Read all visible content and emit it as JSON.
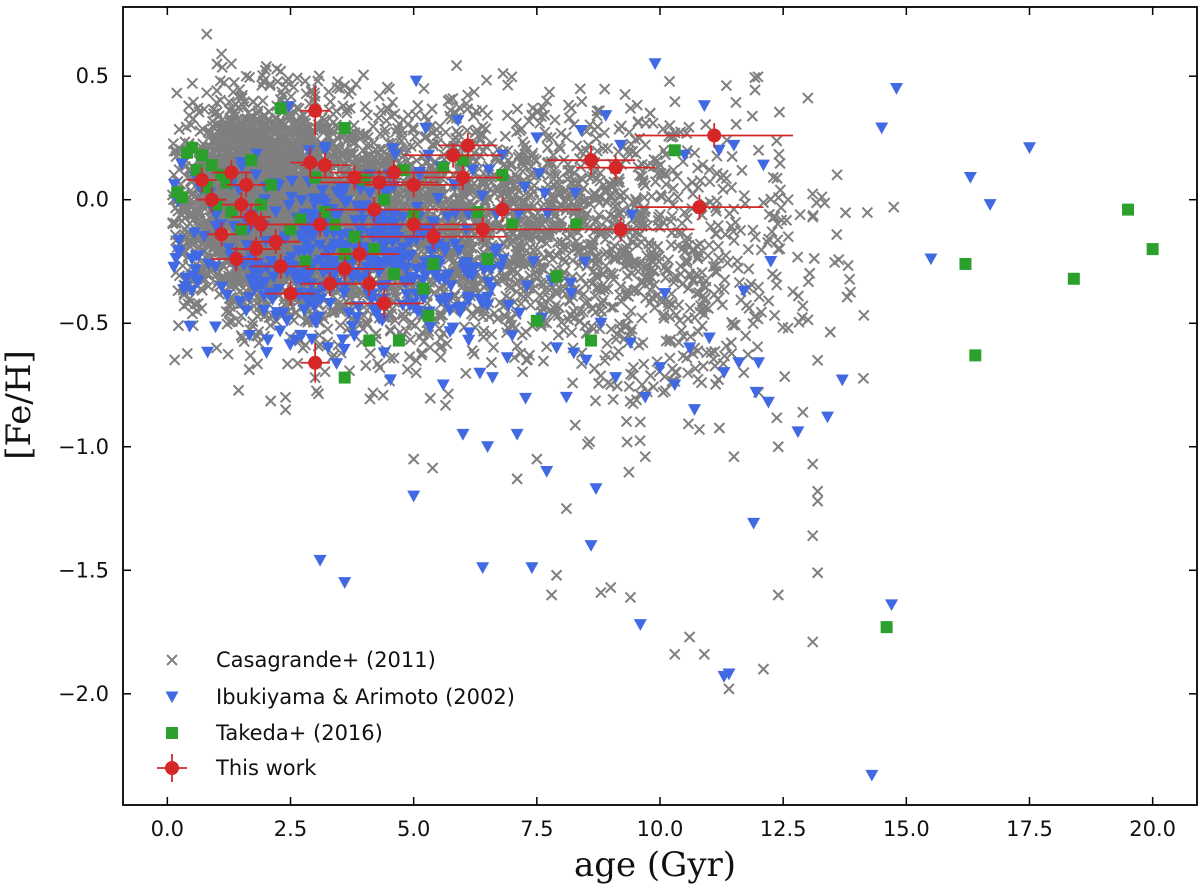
{
  "chart_data": {
    "type": "scatter",
    "title": "",
    "xlabel": "age (Gyr)",
    "ylabel": "[Fe/H]",
    "xlim": [
      -0.9,
      20.9
    ],
    "ylim": [
      -2.45,
      0.78
    ],
    "xticks": [
      0.0,
      2.5,
      5.0,
      7.5,
      10.0,
      12.5,
      15.0,
      17.5,
      20.0
    ],
    "xtick_labels": [
      "0.0",
      "2.5",
      "5.0",
      "7.5",
      "10.0",
      "12.5",
      "15.0",
      "17.5",
      "20.0"
    ],
    "yticks": [
      0.5,
      0.0,
      -0.5,
      -1.0,
      -1.5,
      -2.0
    ],
    "ytick_labels": [
      "0.5",
      "0.0",
      "−0.5",
      "−1.0",
      "−1.5",
      "−2.0"
    ],
    "grid": false,
    "legend_position": "bottom-left",
    "series": [
      {
        "name": "Casagrande+ (2011)",
        "marker": "x",
        "color": "#555555",
        "alpha": 0.75,
        "note": "approx. 6000 stars; dense cloud generated from listed cloud components plus explicit outliers",
        "seed": 12345,
        "cloud": [
          {
            "n": 2000,
            "x_mean": 1.8,
            "x_sd": 0.7,
            "y_mean": 0.0,
            "y_sd": 0.2
          },
          {
            "n": 1700,
            "x_mean": 3.5,
            "x_sd": 1.3,
            "y_mean": -0.08,
            "y_sd": 0.22
          },
          {
            "n": 1300,
            "x_mean": 6.5,
            "x_sd": 2.0,
            "y_mean": -0.1,
            "y_sd": 0.22
          },
          {
            "n": 500,
            "x_mean": 10.0,
            "x_sd": 1.6,
            "y_mean": -0.25,
            "y_sd": 0.3
          }
        ],
        "points": [
          [
            0.8,
            0.67
          ],
          [
            1.1,
            0.59
          ],
          [
            1.3,
            0.55
          ],
          [
            1.6,
            0.5
          ],
          [
            2.3,
            0.52
          ],
          [
            2.8,
            0.48
          ],
          [
            3.5,
            0.45
          ],
          [
            4.3,
            0.42
          ],
          [
            5.7,
            0.4
          ],
          [
            7.7,
            0.4
          ],
          [
            8.2,
            0.37
          ],
          [
            9.4,
            0.37
          ],
          [
            9.8,
            0.35
          ],
          [
            10.2,
            0.3
          ],
          [
            12.0,
            0.2
          ],
          [
            12.3,
            0.09
          ],
          [
            12.6,
            0.0
          ],
          [
            13.1,
            -0.07
          ],
          [
            12.4,
            -0.2
          ],
          [
            11.8,
            -0.28
          ],
          [
            12.9,
            -0.43
          ],
          [
            12.6,
            -0.52
          ],
          [
            13.2,
            -0.65
          ],
          [
            11.7,
            -0.7
          ],
          [
            12.0,
            -0.78
          ],
          [
            12.9,
            -0.86
          ],
          [
            12.4,
            -1.0
          ],
          [
            9.6,
            -0.9
          ],
          [
            10.8,
            -0.93
          ],
          [
            9.7,
            -1.04
          ],
          [
            11.5,
            -1.04
          ],
          [
            13.1,
            -1.07
          ],
          [
            13.2,
            -1.18
          ],
          [
            13.2,
            -1.22
          ],
          [
            13.1,
            -1.36
          ],
          [
            13.2,
            -1.51
          ],
          [
            12.4,
            -1.6
          ],
          [
            13.1,
            -1.79
          ],
          [
            12.1,
            -1.9
          ],
          [
            11.4,
            -1.98
          ],
          [
            10.6,
            -1.77
          ],
          [
            10.3,
            -1.84
          ],
          [
            10.9,
            -1.84
          ],
          [
            9.4,
            -1.61
          ],
          [
            9.0,
            -1.57
          ],
          [
            8.8,
            -1.59
          ],
          [
            7.9,
            -1.52
          ],
          [
            7.8,
            -1.6
          ],
          [
            8.1,
            -1.25
          ],
          [
            7.5,
            -1.05
          ],
          [
            7.1,
            -1.13
          ],
          [
            5.0,
            -1.05
          ],
          [
            2.4,
            -0.8
          ],
          [
            2.4,
            -0.85
          ],
          [
            1.0,
            -0.6
          ],
          [
            0.6,
            -0.45
          ],
          [
            1.5,
            -0.55
          ],
          [
            3.0,
            -0.72
          ]
        ]
      },
      {
        "name": "Ibukiyama & Arimoto (2002)",
        "marker": "v",
        "color": "#4169E1",
        "points": [
          [
            1.5,
            0.15
          ],
          [
            1.8,
            0.1
          ],
          [
            2.0,
            0.05
          ],
          [
            2.2,
            -0.05
          ],
          [
            2.4,
            -0.15
          ],
          [
            1.7,
            -0.2
          ],
          [
            2.1,
            -0.25
          ],
          [
            2.6,
            -0.3
          ],
          [
            1.9,
            -0.35
          ],
          [
            1.6,
            -0.45
          ],
          [
            2.9,
            -0.38
          ],
          [
            3.3,
            -0.42
          ],
          [
            2.7,
            -0.1
          ],
          [
            3.1,
            0.0
          ],
          [
            3.4,
            -0.18
          ],
          [
            3.6,
            -0.3
          ],
          [
            3.9,
            -0.12
          ],
          [
            4.2,
            -0.45
          ],
          [
            4.5,
            -0.22
          ],
          [
            4.8,
            -0.33
          ],
          [
            5.2,
            -0.4
          ],
          [
            5.5,
            -0.18
          ],
          [
            5.8,
            -0.52
          ],
          [
            6.1,
            -0.3
          ],
          [
            6.4,
            -0.42
          ],
          [
            6.7,
            -0.2
          ],
          [
            7.0,
            -0.55
          ],
          [
            7.3,
            -0.35
          ],
          [
            7.6,
            -0.48
          ],
          [
            7.9,
            -0.6
          ],
          [
            8.2,
            -0.38
          ],
          [
            8.5,
            -0.65
          ],
          [
            8.8,
            -0.5
          ],
          [
            9.1,
            -0.72
          ],
          [
            9.4,
            -0.58
          ],
          [
            9.7,
            -0.8
          ],
          [
            10.0,
            -0.68
          ],
          [
            10.3,
            -0.75
          ],
          [
            10.6,
            -0.6
          ],
          [
            11.0,
            -0.56
          ],
          [
            11.3,
            -0.7
          ],
          [
            11.6,
            -0.66
          ],
          [
            12.0,
            -0.66
          ],
          [
            12.2,
            -0.82
          ],
          [
            3.2,
            0.2
          ],
          [
            4.1,
            0.1
          ],
          [
            5.0,
            0.05
          ],
          [
            5.3,
            0.18
          ],
          [
            5.9,
            0.32
          ],
          [
            6.2,
            0.12
          ],
          [
            6.8,
            0.18
          ],
          [
            7.5,
            0.25
          ],
          [
            8.4,
            0.28
          ],
          [
            9.2,
            0.22
          ],
          [
            10.5,
            0.18
          ],
          [
            11.2,
            0.2
          ],
          [
            5.05,
            0.48
          ],
          [
            9.9,
            0.55
          ],
          [
            10.9,
            0.38
          ],
          [
            8.9,
            0.34
          ],
          [
            11.5,
            0.22
          ],
          [
            6.6,
            -0.72
          ],
          [
            6.0,
            -0.95
          ],
          [
            6.5,
            -1.0
          ],
          [
            7.1,
            -0.95
          ],
          [
            7.7,
            -1.1
          ],
          [
            8.7,
            -1.17
          ],
          [
            8.6,
            -1.4
          ],
          [
            5.0,
            -1.2
          ],
          [
            3.1,
            -1.46
          ],
          [
            3.6,
            -1.55
          ],
          [
            6.4,
            -1.49
          ],
          [
            7.4,
            -1.49
          ],
          [
            9.6,
            -1.72
          ],
          [
            11.3,
            -1.93
          ],
          [
            11.4,
            -1.92
          ],
          [
            11.9,
            -1.31
          ],
          [
            12.8,
            -0.94
          ],
          [
            13.4,
            -0.88
          ],
          [
            13.7,
            -0.73
          ],
          [
            14.3,
            -2.33
          ],
          [
            14.5,
            0.29
          ],
          [
            14.8,
            0.45
          ],
          [
            15.5,
            -0.24
          ],
          [
            16.3,
            0.09
          ],
          [
            16.7,
            -0.02
          ],
          [
            17.5,
            0.21
          ],
          [
            14.7,
            -1.64
          ],
          [
            12.25,
            -0.25
          ],
          [
            11.7,
            -0.37
          ],
          [
            10.1,
            -0.38
          ],
          [
            10.7,
            -0.85
          ],
          [
            11.95,
            -0.78
          ],
          [
            12.1,
            0.14
          ],
          [
            4.4,
            -0.62
          ],
          [
            5.6,
            -0.75
          ],
          [
            6.9,
            -0.64
          ],
          [
            8.1,
            -0.8
          ]
        ],
        "cloud": [
          {
            "n": 430,
            "x_mean": 3.7,
            "x_sd": 1.9,
            "y_mean": -0.22,
            "y_sd": 0.18
          }
        ],
        "seed": 777
      },
      {
        "name": "Takeda+ (2016)",
        "marker": "s",
        "color": "#2CA02C",
        "points": [
          [
            0.2,
            0.03
          ],
          [
            0.3,
            0.01
          ],
          [
            0.4,
            0.19
          ],
          [
            0.5,
            0.21
          ],
          [
            0.6,
            0.12
          ],
          [
            0.7,
            0.18
          ],
          [
            0.8,
            0.05
          ],
          [
            0.9,
            0.14
          ],
          [
            1.0,
            -0.02
          ],
          [
            1.1,
            0.1
          ],
          [
            1.2,
            0.07
          ],
          [
            1.3,
            -0.05
          ],
          [
            1.5,
            -0.12
          ],
          [
            1.7,
            0.16
          ],
          [
            1.9,
            -0.02
          ],
          [
            2.1,
            0.06
          ],
          [
            2.3,
            0.37
          ],
          [
            2.5,
            -0.12
          ],
          [
            2.7,
            -0.08
          ],
          [
            2.8,
            -0.25
          ],
          [
            3.0,
            0.09
          ],
          [
            3.2,
            -0.05
          ],
          [
            3.4,
            -0.1
          ],
          [
            3.6,
            -0.22
          ],
          [
            3.6,
            0.29
          ],
          [
            3.8,
            -0.15
          ],
          [
            4.0,
            0.08
          ],
          [
            4.2,
            -0.2
          ],
          [
            4.4,
            0.0
          ],
          [
            4.6,
            -0.3
          ],
          [
            4.8,
            0.12
          ],
          [
            5.0,
            -0.06
          ],
          [
            5.2,
            -0.36
          ],
          [
            5.4,
            -0.26
          ],
          [
            5.6,
            0.13
          ],
          [
            6.0,
            0.16
          ],
          [
            6.3,
            -0.05
          ],
          [
            6.5,
            -0.24
          ],
          [
            6.8,
            0.1
          ],
          [
            7.0,
            -0.1
          ],
          [
            7.5,
            -0.49
          ],
          [
            7.9,
            -0.31
          ],
          [
            8.3,
            -0.1
          ],
          [
            8.6,
            -0.57
          ],
          [
            10.3,
            0.2
          ],
          [
            4.7,
            -0.57
          ],
          [
            4.1,
            -0.57
          ],
          [
            5.3,
            -0.47
          ],
          [
            3.6,
            -0.72
          ],
          [
            16.2,
            -0.26
          ],
          [
            16.4,
            -0.63
          ],
          [
            18.4,
            -0.32
          ],
          [
            19.5,
            -0.04
          ],
          [
            20.0,
            -0.2
          ],
          [
            14.6,
            -1.73
          ]
        ]
      },
      {
        "name": "This work",
        "marker": "o",
        "color": "#D62728",
        "points": [
          {
            "x": 0.7,
            "y": 0.08,
            "xerr": 0.3,
            "yerr": 0.05
          },
          {
            "x": 0.9,
            "y": 0.0,
            "xerr": 0.3,
            "yerr": 0.05
          },
          {
            "x": 1.1,
            "y": -0.14,
            "xerr": 0.3,
            "yerr": 0.05
          },
          {
            "x": 1.3,
            "y": 0.11,
            "xerr": 0.4,
            "yerr": 0.05
          },
          {
            "x": 1.4,
            "y": -0.24,
            "xerr": 0.5,
            "yerr": 0.05
          },
          {
            "x": 1.5,
            "y": -0.02,
            "xerr": 0.4,
            "yerr": 0.05
          },
          {
            "x": 1.6,
            "y": 0.06,
            "xerr": 0.4,
            "yerr": 0.05
          },
          {
            "x": 1.7,
            "y": -0.07,
            "xerr": 0.4,
            "yerr": 0.05
          },
          {
            "x": 1.8,
            "y": -0.2,
            "xerr": 0.5,
            "yerr": 0.05
          },
          {
            "x": 1.9,
            "y": -0.1,
            "xerr": 0.5,
            "yerr": 0.05
          },
          {
            "x": 2.2,
            "y": -0.17,
            "xerr": 0.5,
            "yerr": 0.05
          },
          {
            "x": 2.3,
            "y": -0.27,
            "xerr": 0.6,
            "yerr": 0.05
          },
          {
            "x": 2.5,
            "y": -0.38,
            "xerr": 0.5,
            "yerr": 0.05
          },
          {
            "x": 2.9,
            "y": 0.15,
            "xerr": 0.4,
            "yerr": 0.06
          },
          {
            "x": 3.0,
            "y": 0.36,
            "xerr": 0.3,
            "yerr": 0.1
          },
          {
            "x": 3.0,
            "y": -0.66,
            "xerr": 0.3,
            "yerr": 0.08
          },
          {
            "x": 3.1,
            "y": -0.1,
            "xerr": 1.0,
            "yerr": 0.05
          },
          {
            "x": 3.2,
            "y": 0.14,
            "xerr": 0.5,
            "yerr": 0.05
          },
          {
            "x": 3.3,
            "y": -0.34,
            "xerr": 0.6,
            "yerr": 0.05
          },
          {
            "x": 3.6,
            "y": -0.28,
            "xerr": 0.8,
            "yerr": 0.05
          },
          {
            "x": 3.8,
            "y": 0.09,
            "xerr": 0.9,
            "yerr": 0.05
          },
          {
            "x": 3.9,
            "y": -0.22,
            "xerr": 0.8,
            "yerr": 0.05
          },
          {
            "x": 4.1,
            "y": -0.34,
            "xerr": 0.9,
            "yerr": 0.05
          },
          {
            "x": 4.2,
            "y": -0.04,
            "xerr": 1.0,
            "yerr": 0.05
          },
          {
            "x": 4.3,
            "y": 0.07,
            "xerr": 1.2,
            "yerr": 0.05
          },
          {
            "x": 4.4,
            "y": -0.42,
            "xerr": 0.8,
            "yerr": 0.06
          },
          {
            "x": 4.6,
            "y": 0.11,
            "xerr": 1.3,
            "yerr": 0.05
          },
          {
            "x": 5.0,
            "y": 0.06,
            "xerr": 1.0,
            "yerr": 0.05
          },
          {
            "x": 5.0,
            "y": -0.1,
            "xerr": 1.4,
            "yerr": 0.05
          },
          {
            "x": 5.4,
            "y": -0.15,
            "xerr": 1.5,
            "yerr": 0.05
          },
          {
            "x": 5.8,
            "y": 0.18,
            "xerr": 1.0,
            "yerr": 0.05
          },
          {
            "x": 6.0,
            "y": 0.09,
            "xerr": 0.8,
            "yerr": 0.05
          },
          {
            "x": 6.1,
            "y": 0.22,
            "xerr": 0.6,
            "yerr": 0.05
          },
          {
            "x": 6.4,
            "y": -0.12,
            "xerr": 1.5,
            "yerr": 0.05
          },
          {
            "x": 6.8,
            "y": -0.04,
            "xerr": 1.6,
            "yerr": 0.05
          },
          {
            "x": 8.6,
            "y": 0.16,
            "xerr": 0.9,
            "yerr": 0.06
          },
          {
            "x": 9.1,
            "y": 0.13,
            "xerr": 0.8,
            "yerr": 0.05
          },
          {
            "x": 9.2,
            "y": -0.12,
            "xerr": 1.5,
            "yerr": 0.05
          },
          {
            "x": 10.8,
            "y": -0.03,
            "xerr": 1.3,
            "yerr": 0.05
          },
          {
            "x": 11.1,
            "y": 0.26,
            "xerr": 1.6,
            "yerr": 0.05
          }
        ]
      }
    ]
  }
}
